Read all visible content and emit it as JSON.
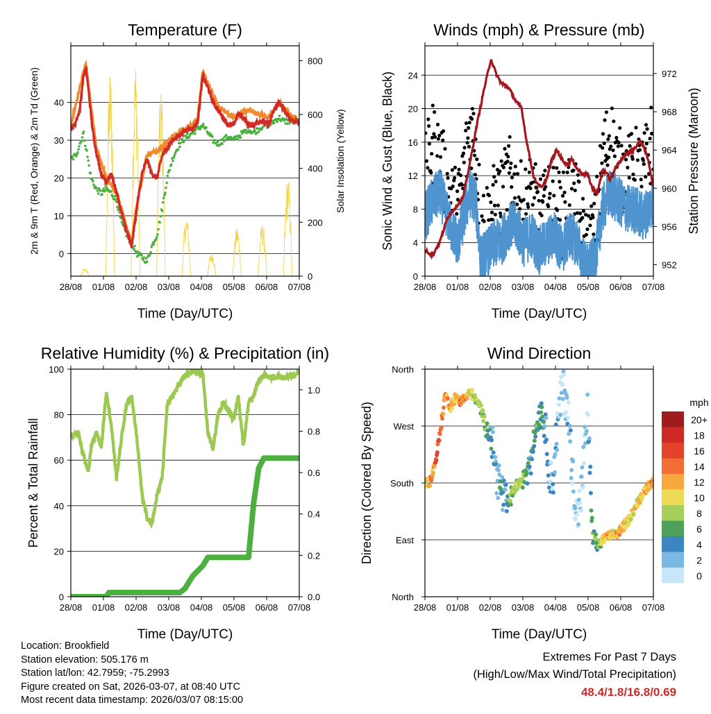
{
  "chart_data": [
    {
      "type": "line",
      "title": "Temperature (F)",
      "xlabel": "Time (Day/UTC)",
      "ylabel_left": "2m & 9m T (Red, Orange) & 2m Td (Green)",
      "ylabel_right": "Solar Insolation (Yellow)",
      "ylim": [
        -6,
        55
      ],
      "ylim_right": [
        0,
        855
      ],
      "xlim": [
        0,
        9
      ],
      "x_ticks": [
        "28/08",
        "01/08",
        "02/08",
        "03/08",
        "04/08",
        "05/08",
        "06/08",
        "07/08"
      ],
      "y_ticks": [
        0,
        10,
        20,
        30,
        40
      ],
      "y_ticks_right": [
        0,
        200,
        400,
        600,
        800
      ],
      "series": [
        {
          "name": "2m T",
          "color": "#d22a26",
          "x": [
            0,
            0.15,
            0.35,
            0.5,
            0.6,
            0.7,
            0.85,
            1,
            1.2,
            1.4,
            1.6,
            1.8,
            2,
            2.2,
            2.4,
            2.6,
            2.8,
            3,
            3.2,
            3.4,
            3.6,
            3.8,
            4,
            4.2,
            4.4,
            4.6,
            4.8,
            5,
            5.2,
            5.4,
            5.6,
            5.8,
            6,
            6.2,
            6.4,
            6.6,
            6.8,
            7,
            7.2,
            7.4,
            7.6,
            7.8,
            8,
            8.2,
            8.4,
            8.6,
            8.8,
            9
          ],
          "values": [
            33,
            34,
            38,
            47,
            49,
            43,
            33,
            27,
            21,
            19,
            21,
            16,
            11,
            6,
            2,
            12,
            21,
            25,
            21,
            20,
            26,
            28,
            30,
            31,
            32,
            33,
            33,
            35,
            47,
            44,
            40,
            38,
            36,
            34,
            34,
            37,
            36,
            34,
            34,
            35,
            35,
            34,
            38,
            40,
            38,
            36,
            35,
            35
          ]
        },
        {
          "name": "9m T",
          "color": "#f08a2e",
          "x": [
            0,
            0.5,
            0.6,
            0.7,
            1,
            1.4,
            1.8,
            2.2,
            2.4,
            2.6,
            3,
            3.6,
            4,
            4.6,
            5,
            5.2,
            5.4,
            5.8,
            6.4,
            7,
            7.8,
            8.2,
            8.6,
            9
          ],
          "values": [
            34,
            48,
            50,
            44,
            28,
            20,
            16,
            7,
            3,
            13,
            26,
            28,
            31,
            33,
            36,
            48,
            45,
            39,
            36,
            38,
            36,
            40,
            37,
            35
          ]
        },
        {
          "name": "2m Td",
          "color": "#4caf40",
          "x": [
            0,
            0.2,
            0.4,
            0.5,
            0.6,
            0.8,
            1,
            1.2,
            1.4,
            1.6,
            1.8,
            2,
            2.2,
            2.4,
            2.6,
            2.8,
            3,
            3.2,
            3.4,
            3.6,
            3.8,
            4,
            4.2,
            4.4,
            4.6,
            4.8,
            5,
            5.2,
            5.4,
            5.6,
            5.8,
            6,
            6.2,
            6.4,
            6.6,
            6.8,
            7,
            7.2,
            7.4,
            7.6,
            7.8,
            8,
            8.2,
            8.4,
            8.6,
            8.8,
            9
          ],
          "values": [
            25,
            26,
            30,
            32,
            28,
            20,
            17,
            16,
            17,
            16,
            14,
            8,
            5,
            3,
            0,
            -1,
            -2,
            2,
            5,
            12,
            20,
            25,
            28,
            30,
            31,
            32,
            33,
            34,
            32,
            30,
            29,
            30,
            31,
            30,
            31,
            32,
            33,
            32,
            33,
            34,
            34,
            35,
            36,
            35,
            35,
            35,
            35
          ]
        }
      ],
      "insolation": {
        "name": "Solar Insolation",
        "color": "#f5d442",
        "days": [
          0.55,
          1.55,
          2.55,
          3.55,
          4.55,
          5.55,
          6.55,
          7.55,
          8.55
        ],
        "peaks": [
          30,
          790,
          820,
          720,
          230,
          90,
          190,
          200,
          380
        ]
      }
    },
    {
      "type": "scatter",
      "title": "Winds (mph) & Pressure (mb)",
      "xlabel": "Time (Day/UTC)",
      "ylabel_left": "Sonic Wind & Gust (Blue, Black)",
      "ylabel_right": "Station Pressure (Maroon)",
      "ylim": [
        0,
        27.5
      ],
      "ylim_right": [
        950.8,
        974.9
      ],
      "xlim": [
        0,
        9
      ],
      "x_ticks": [
        "28/08",
        "01/08",
        "02/08",
        "03/08",
        "04/08",
        "05/08",
        "06/08",
        "07/08"
      ],
      "y_ticks": [
        0,
        4,
        8,
        12,
        16,
        20,
        24
      ],
      "y_ticks_right": [
        952,
        956,
        960,
        964,
        968,
        972
      ],
      "series": [
        {
          "name": "Sonic Wind",
          "color": "#4f93cf",
          "x": [
            0,
            0.3,
            0.6,
            1,
            1.3,
            1.6,
            1.8,
            2,
            2.2,
            2.5,
            2.8,
            3,
            3.3,
            3.6,
            3.9,
            4.2,
            4.5,
            4.8,
            5.1,
            5.4,
            5.7,
            6,
            6.2,
            6.4,
            6.7,
            7,
            7.3,
            7.6,
            8,
            8.3,
            8.6,
            9
          ],
          "values": [
            7,
            9,
            10,
            6,
            4,
            8,
            10,
            9,
            2,
            3,
            4,
            4,
            6,
            6,
            4,
            5,
            3,
            4,
            5,
            3,
            5,
            4,
            2,
            1,
            2,
            8,
            10,
            9,
            8,
            8,
            7,
            9
          ]
        },
        {
          "name": "Gust",
          "color": "#000000",
          "x": [
            0,
            0.3,
            0.6,
            1,
            1.3,
            1.6,
            1.8,
            2,
            2.2,
            2.5,
            2.8,
            3,
            3.3,
            3.6,
            3.9,
            4.2,
            4.5,
            4.8,
            5.1,
            5.4,
            5.7,
            6,
            6.2,
            6.4,
            6.7,
            7,
            7.3,
            7.6,
            8,
            8.3,
            8.6,
            9
          ],
          "values": [
            12,
            16,
            14,
            9,
            8,
            14,
            18,
            16,
            6,
            7,
            9,
            9,
            12,
            10,
            8,
            10,
            7,
            8,
            9,
            7,
            10,
            8,
            5,
            3,
            5,
            14,
            17,
            13,
            12,
            13,
            12,
            17
          ]
        },
        {
          "name": "Station Pressure",
          "color": "#a3171f",
          "x": [
            0,
            0.3,
            0.6,
            0.9,
            1.2,
            1.5,
            1.8,
            2,
            2.3,
            2.6,
            2.8,
            3,
            3.3,
            3.6,
            3.8,
            4,
            4.3,
            4.6,
            4.8,
            5,
            5.2,
            5.4,
            5.6,
            5.8,
            6,
            6.2,
            6.4,
            6.6,
            6.8,
            7,
            7.3,
            7.6,
            7.9,
            8.2,
            8.5,
            8.8,
            9
          ],
          "values": [
            953.5,
            953,
            954.5,
            957,
            958,
            959,
            963,
            966,
            970,
            973.5,
            972,
            971,
            970.5,
            969,
            968.5,
            965,
            961,
            960,
            961,
            963,
            964,
            963,
            962.5,
            963,
            962,
            961.5,
            961.5,
            960,
            959.5,
            962,
            961,
            962.5,
            963.5,
            964,
            965,
            963,
            960
          ]
        }
      ]
    },
    {
      "type": "line",
      "title": "Relative Humidity (%) & Precipitation (in)",
      "xlabel": "Time (Day/UTC)",
      "ylabel_left": "Percent & Total Rainfall",
      "ylim": [
        0,
        100
      ],
      "ylim_right": [
        0,
        1.1
      ],
      "xlim": [
        0,
        9
      ],
      "x_ticks": [
        "28/08",
        "01/08",
        "02/08",
        "03/08",
        "04/08",
        "05/08",
        "06/08",
        "07/08"
      ],
      "y_ticks": [
        0,
        20,
        40,
        60,
        80,
        100
      ],
      "y_ticks_right": [
        0.0,
        0.2,
        0.4,
        0.6,
        0.8,
        1.0
      ],
      "series": [
        {
          "name": "Relative Humidity",
          "color": "#9cc951",
          "x": [
            0,
            0.3,
            0.5,
            0.7,
            0.8,
            1,
            1.2,
            1.4,
            1.6,
            1.8,
            2,
            2.2,
            2.4,
            2.6,
            2.8,
            3,
            3.2,
            3.4,
            3.6,
            3.8,
            4,
            4.2,
            4.4,
            4.6,
            4.8,
            5,
            5.2,
            5.4,
            5.6,
            5.8,
            6,
            6.2,
            6.4,
            6.6,
            6.8,
            7,
            7.2,
            7.4,
            7.6,
            7.8,
            8,
            8.2,
            8.4,
            8.6,
            8.8,
            9
          ],
          "values": [
            71,
            72,
            62,
            55,
            66,
            72,
            66,
            90,
            75,
            52,
            70,
            85,
            88,
            70,
            45,
            35,
            32,
            45,
            52,
            85,
            88,
            92,
            96,
            98,
            99,
            99,
            98,
            72,
            65,
            80,
            85,
            82,
            78,
            88,
            66,
            85,
            88,
            95,
            97,
            97,
            96,
            97,
            96,
            97,
            97,
            99
          ]
        },
        {
          "name": "Total Precipitation",
          "color": "#4caf40",
          "x": [
            0,
            1.4,
            1.5,
            4.3,
            4.5,
            4.8,
            5.2,
            5.4,
            5.6,
            5.8,
            6,
            6.2,
            6.4,
            6.6,
            6.8,
            7,
            7.2,
            7.4,
            7.6,
            8,
            8.5,
            9
          ],
          "values": [
            0.0,
            0.0,
            0.02,
            0.02,
            0.04,
            0.1,
            0.15,
            0.19,
            0.19,
            0.19,
            0.19,
            0.19,
            0.19,
            0.19,
            0.19,
            0.19,
            0.45,
            0.62,
            0.67,
            0.67,
            0.67,
            0.67
          ]
        }
      ]
    },
    {
      "type": "scatter",
      "title": "Wind Direction",
      "xlabel": "Time (Day/UTC)",
      "ylabel": "Direction (Colored By Speed)",
      "xlim": [
        0,
        9
      ],
      "ylim": [
        0,
        360
      ],
      "x_ticks": [
        "28/08",
        "01/08",
        "02/08",
        "03/08",
        "04/08",
        "05/08",
        "06/08",
        "07/08"
      ],
      "y_tick_labels": [
        "North",
        "East",
        "South",
        "West",
        "North"
      ],
      "y_tick_values": [
        0,
        90,
        180,
        270,
        360
      ],
      "legend_title": "mph",
      "legend_labels": [
        "20+",
        "18",
        "16",
        "14",
        "12",
        "10",
        "8",
        "6",
        "4",
        "2",
        "0"
      ],
      "legend_colors": [
        "#9e1b1e",
        "#cd2a27",
        "#e3422b",
        "#f26d33",
        "#f7a93f",
        "#eedb55",
        "#a8cf5b",
        "#4ea15a",
        "#3b85c0",
        "#7ab9e3",
        "#c7e6f7"
      ],
      "series": [
        {
          "name": "Direction",
          "x": [
            0,
            0.2,
            0.4,
            0.6,
            0.8,
            1,
            1.2,
            1.4,
            1.6,
            1.8,
            2,
            2.2,
            2.4,
            2.6,
            2.8,
            3,
            3.2,
            3.4,
            3.6,
            3.8,
            4,
            4.2,
            4.4,
            4.6,
            4.8,
            5,
            5.2,
            5.4,
            5.6,
            5.8,
            6,
            6.2,
            6.4,
            6.6,
            6.8,
            7,
            7.2,
            7.4,
            7.6,
            7.8,
            8,
            8.2,
            8.4,
            8.6,
            8.8,
            9
          ],
          "values": [
            180,
            182,
            210,
            260,
            320,
            300,
            315,
            310,
            315,
            325,
            310,
            300,
            270,
            250,
            200,
            170,
            140,
            160,
            175,
            180,
            200,
            230,
            270,
            300,
            240,
            170,
            260,
            330,
            310,
            200,
            120,
            180,
            300,
            100,
            80,
            90,
            95,
            98,
            100,
            110,
            120,
            135,
            150,
            165,
            175,
            185
          ],
          "speeds": [
            10,
            12,
            14,
            16,
            12,
            12,
            10,
            14,
            12,
            10,
            8,
            8,
            6,
            5,
            3,
            4,
            3,
            8,
            8,
            9,
            5,
            4,
            6,
            5,
            4,
            2,
            2,
            1,
            1,
            2,
            1,
            1,
            1,
            6,
            6,
            10,
            12,
            10,
            12,
            12,
            10,
            10,
            10,
            11,
            12,
            12
          ]
        }
      ]
    }
  ],
  "info": {
    "location": "Location: Brookfield",
    "elevation": "Station elevation: 505.176 m",
    "latlon": "Station lat/lon: 42.7959; -75.2993",
    "created": "Figure created on Sat, 2026-03-07, at 08:40 UTC",
    "recent": "Most recent data timestamp: 2026/03/07 08:15:00"
  },
  "extremes": {
    "title": "Extremes For Past 7 Days",
    "subtitle": "(High/Low/Max Wind/Total Precipitation)",
    "values": "48.4/1.8/16.8/0.69"
  }
}
